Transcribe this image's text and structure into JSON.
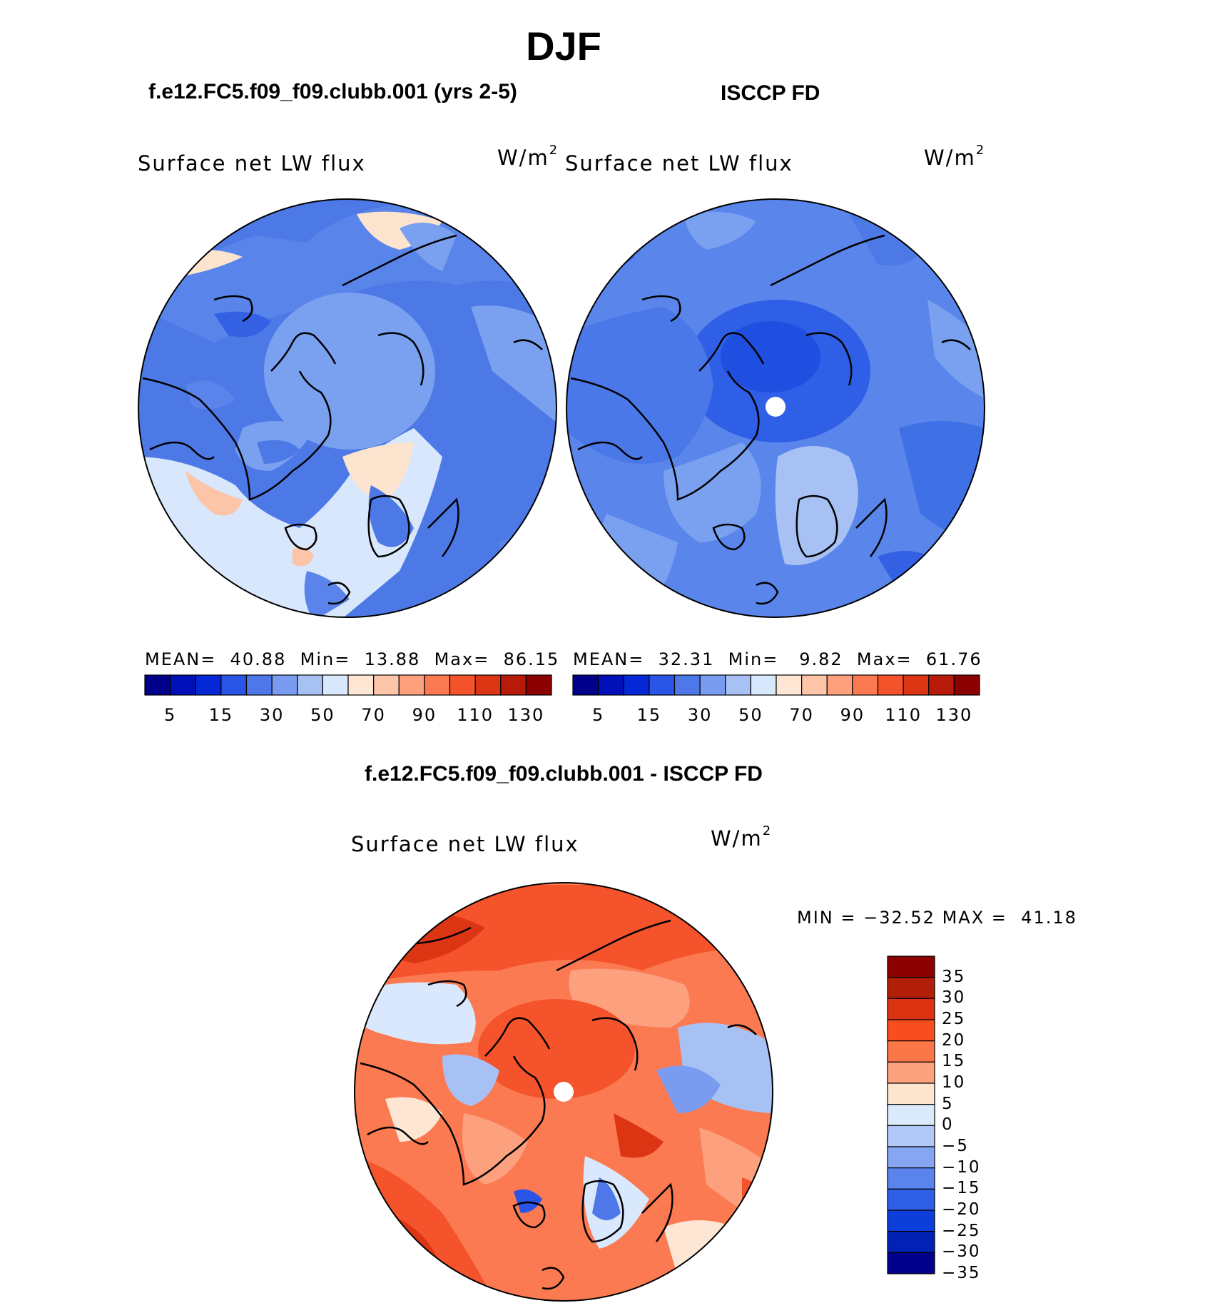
{
  "title": "DJF",
  "panels": [
    {
      "id": "model",
      "header": "f.e12.FC5.f09_f09.clubb.001 (yrs 2-5)",
      "variable": "Surface net LW flux",
      "units": "W/m",
      "units_sup": "2",
      "stats": {
        "mean_label": "MEAN=",
        "mean": "40.88",
        "min_label": "Min=",
        "min": "13.88",
        "max_label": "Max=",
        "max": "86.15"
      }
    },
    {
      "id": "obs",
      "header": "ISCCP FD",
      "variable": "Surface net LW flux",
      "units": "W/m",
      "units_sup": "2",
      "stats": {
        "mean_label": "MEAN=",
        "mean": "32.31",
        "min_label": "Min=",
        "min": "9.82",
        "max_label": "Max=",
        "max": "61.76"
      }
    },
    {
      "id": "diff",
      "header": "f.e12.FC5.f09_f09.clubb.001 - ISCCP FD",
      "variable": "Surface net LW flux",
      "units": "W/m",
      "units_sup": "2",
      "stats": {
        "min_label": "MIN =",
        "min": "−32.52",
        "max_label": "MAX =",
        "max": "41.18"
      }
    }
  ],
  "abs_colorbar": {
    "colors": [
      "#00008b",
      "#0010b8",
      "#0428d8",
      "#2a54e6",
      "#4e77ea",
      "#7a9cf0",
      "#a8c1f5",
      "#d9e8fc",
      "#fde6d4",
      "#fcc5a8",
      "#fca07e",
      "#fb7a52",
      "#f4532b",
      "#dc3514",
      "#b71a08",
      "#8b0000"
    ],
    "tick_labels": [
      "5",
      "15",
      "30",
      "50",
      "70",
      "90",
      "110",
      "130"
    ]
  },
  "diff_colorbar": {
    "colors_top_to_bottom": [
      "#8b0000",
      "#b21f08",
      "#dc3412",
      "#fa4d1f",
      "#fb7747",
      "#fca27f",
      "#fde4cf",
      "#dbeafc",
      "#b0c9f6",
      "#86a6f1",
      "#5a84ec",
      "#2f5fe6",
      "#0e3ed9",
      "#0222b6",
      "#00008b"
    ],
    "tick_labels": [
      "35",
      "30",
      "25",
      "20",
      "15",
      "10",
      "5",
      "0",
      "−5",
      "−10",
      "−15",
      "−20",
      "−25",
      "−30",
      "−35"
    ]
  },
  "map_maps": {
    "model": {
      "base": "#4d79e6",
      "regions": "mixed blues with light and salmon patches"
    },
    "obs": {
      "base": "#5a86ec",
      "regions": "blue with darker central Arctic"
    },
    "diff": {
      "base": "#fb7a52",
      "regions": "reds with blue patches"
    }
  }
}
